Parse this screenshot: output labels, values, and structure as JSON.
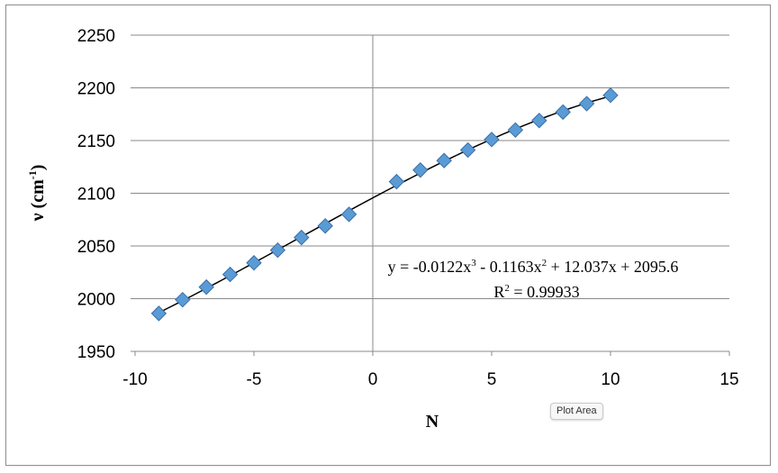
{
  "chart_data": {
    "type": "scatter",
    "xlabel": "N",
    "ylabel": {
      "main": "ν (cm",
      "sup": "-1",
      "close": ")"
    },
    "xlim": [
      -10,
      15
    ],
    "ylim": [
      1950,
      2250
    ],
    "x_ticks": [
      -10,
      -5,
      0,
      5,
      10,
      15
    ],
    "y_ticks": [
      1950,
      2000,
      2050,
      2100,
      2150,
      2200,
      2250
    ],
    "grid": {
      "horizontal": true,
      "vertical": false
    },
    "series": [
      {
        "marker": "diamond",
        "color": "#5b9bd5",
        "x": [
          -9,
          -8,
          -7,
          -6,
          -5,
          -4,
          -3,
          -2,
          -1,
          1,
          2,
          3,
          4,
          5,
          6,
          7,
          8,
          9,
          10
        ],
        "y": [
          1986,
          1999,
          2011,
          2023,
          2034,
          2046,
          2058,
          2069,
          2080,
          2111,
          2122,
          2131,
          2141,
          2151,
          2160,
          2169,
          2177,
          2185,
          2193
        ]
      }
    ],
    "trendline": {
      "type": "polynomial",
      "coefficients": [
        -0.0122,
        -0.1163,
        12.037,
        2095.6
      ],
      "x_range": [
        -9,
        10
      ],
      "color": "#000000"
    },
    "equation": {
      "parts": [
        "y = -0.0122x",
        "3",
        " - 0.1163x",
        "2",
        " + 12.037x + 2095.6"
      ],
      "r2_parts": [
        "R",
        "2",
        " = 0.99933"
      ]
    }
  },
  "tooltip": {
    "label": "Plot Area"
  }
}
